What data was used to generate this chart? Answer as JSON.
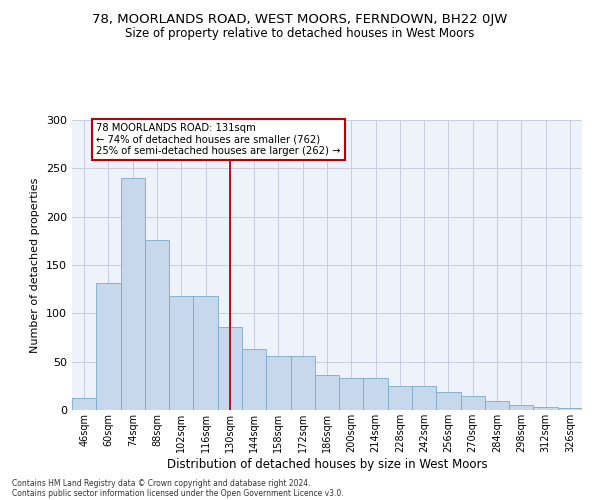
{
  "title1": "78, MOORLANDS ROAD, WEST MOORS, FERNDOWN, BH22 0JW",
  "title2": "Size of property relative to detached houses in West Moors",
  "xlabel": "Distribution of detached houses by size in West Moors",
  "ylabel": "Number of detached properties",
  "bar_color": "#c8d8ec",
  "bar_edge_color": "#7aabcc",
  "grid_color": "#c8cce0",
  "bg_color": "#eef2fa",
  "annotation_text": "78 MOORLANDS ROAD: 131sqm\n← 74% of detached houses are smaller (762)\n25% of semi-detached houses are larger (262) →",
  "vline_color": "#bb0000",
  "annotation_box_color": "#ffffff",
  "annotation_box_edge": "#bb0000",
  "categories": [
    "46sqm",
    "60sqm",
    "74sqm",
    "88sqm",
    "102sqm",
    "116sqm",
    "130sqm",
    "144sqm",
    "158sqm",
    "172sqm",
    "186sqm",
    "200sqm",
    "214sqm",
    "228sqm",
    "242sqm",
    "256sqm",
    "270sqm",
    "284sqm",
    "298sqm",
    "312sqm",
    "326sqm"
  ],
  "values": [
    12,
    131,
    240,
    176,
    118,
    118,
    86,
    63,
    56,
    56,
    36,
    33,
    33,
    25,
    25,
    19,
    15,
    9,
    5,
    3,
    2
  ],
  "ylim": [
    0,
    300
  ],
  "yticks": [
    0,
    50,
    100,
    150,
    200,
    250,
    300
  ],
  "footnote1": "Contains HM Land Registry data © Crown copyright and database right 2024.",
  "footnote2": "Contains public sector information licensed under the Open Government Licence v3.0."
}
